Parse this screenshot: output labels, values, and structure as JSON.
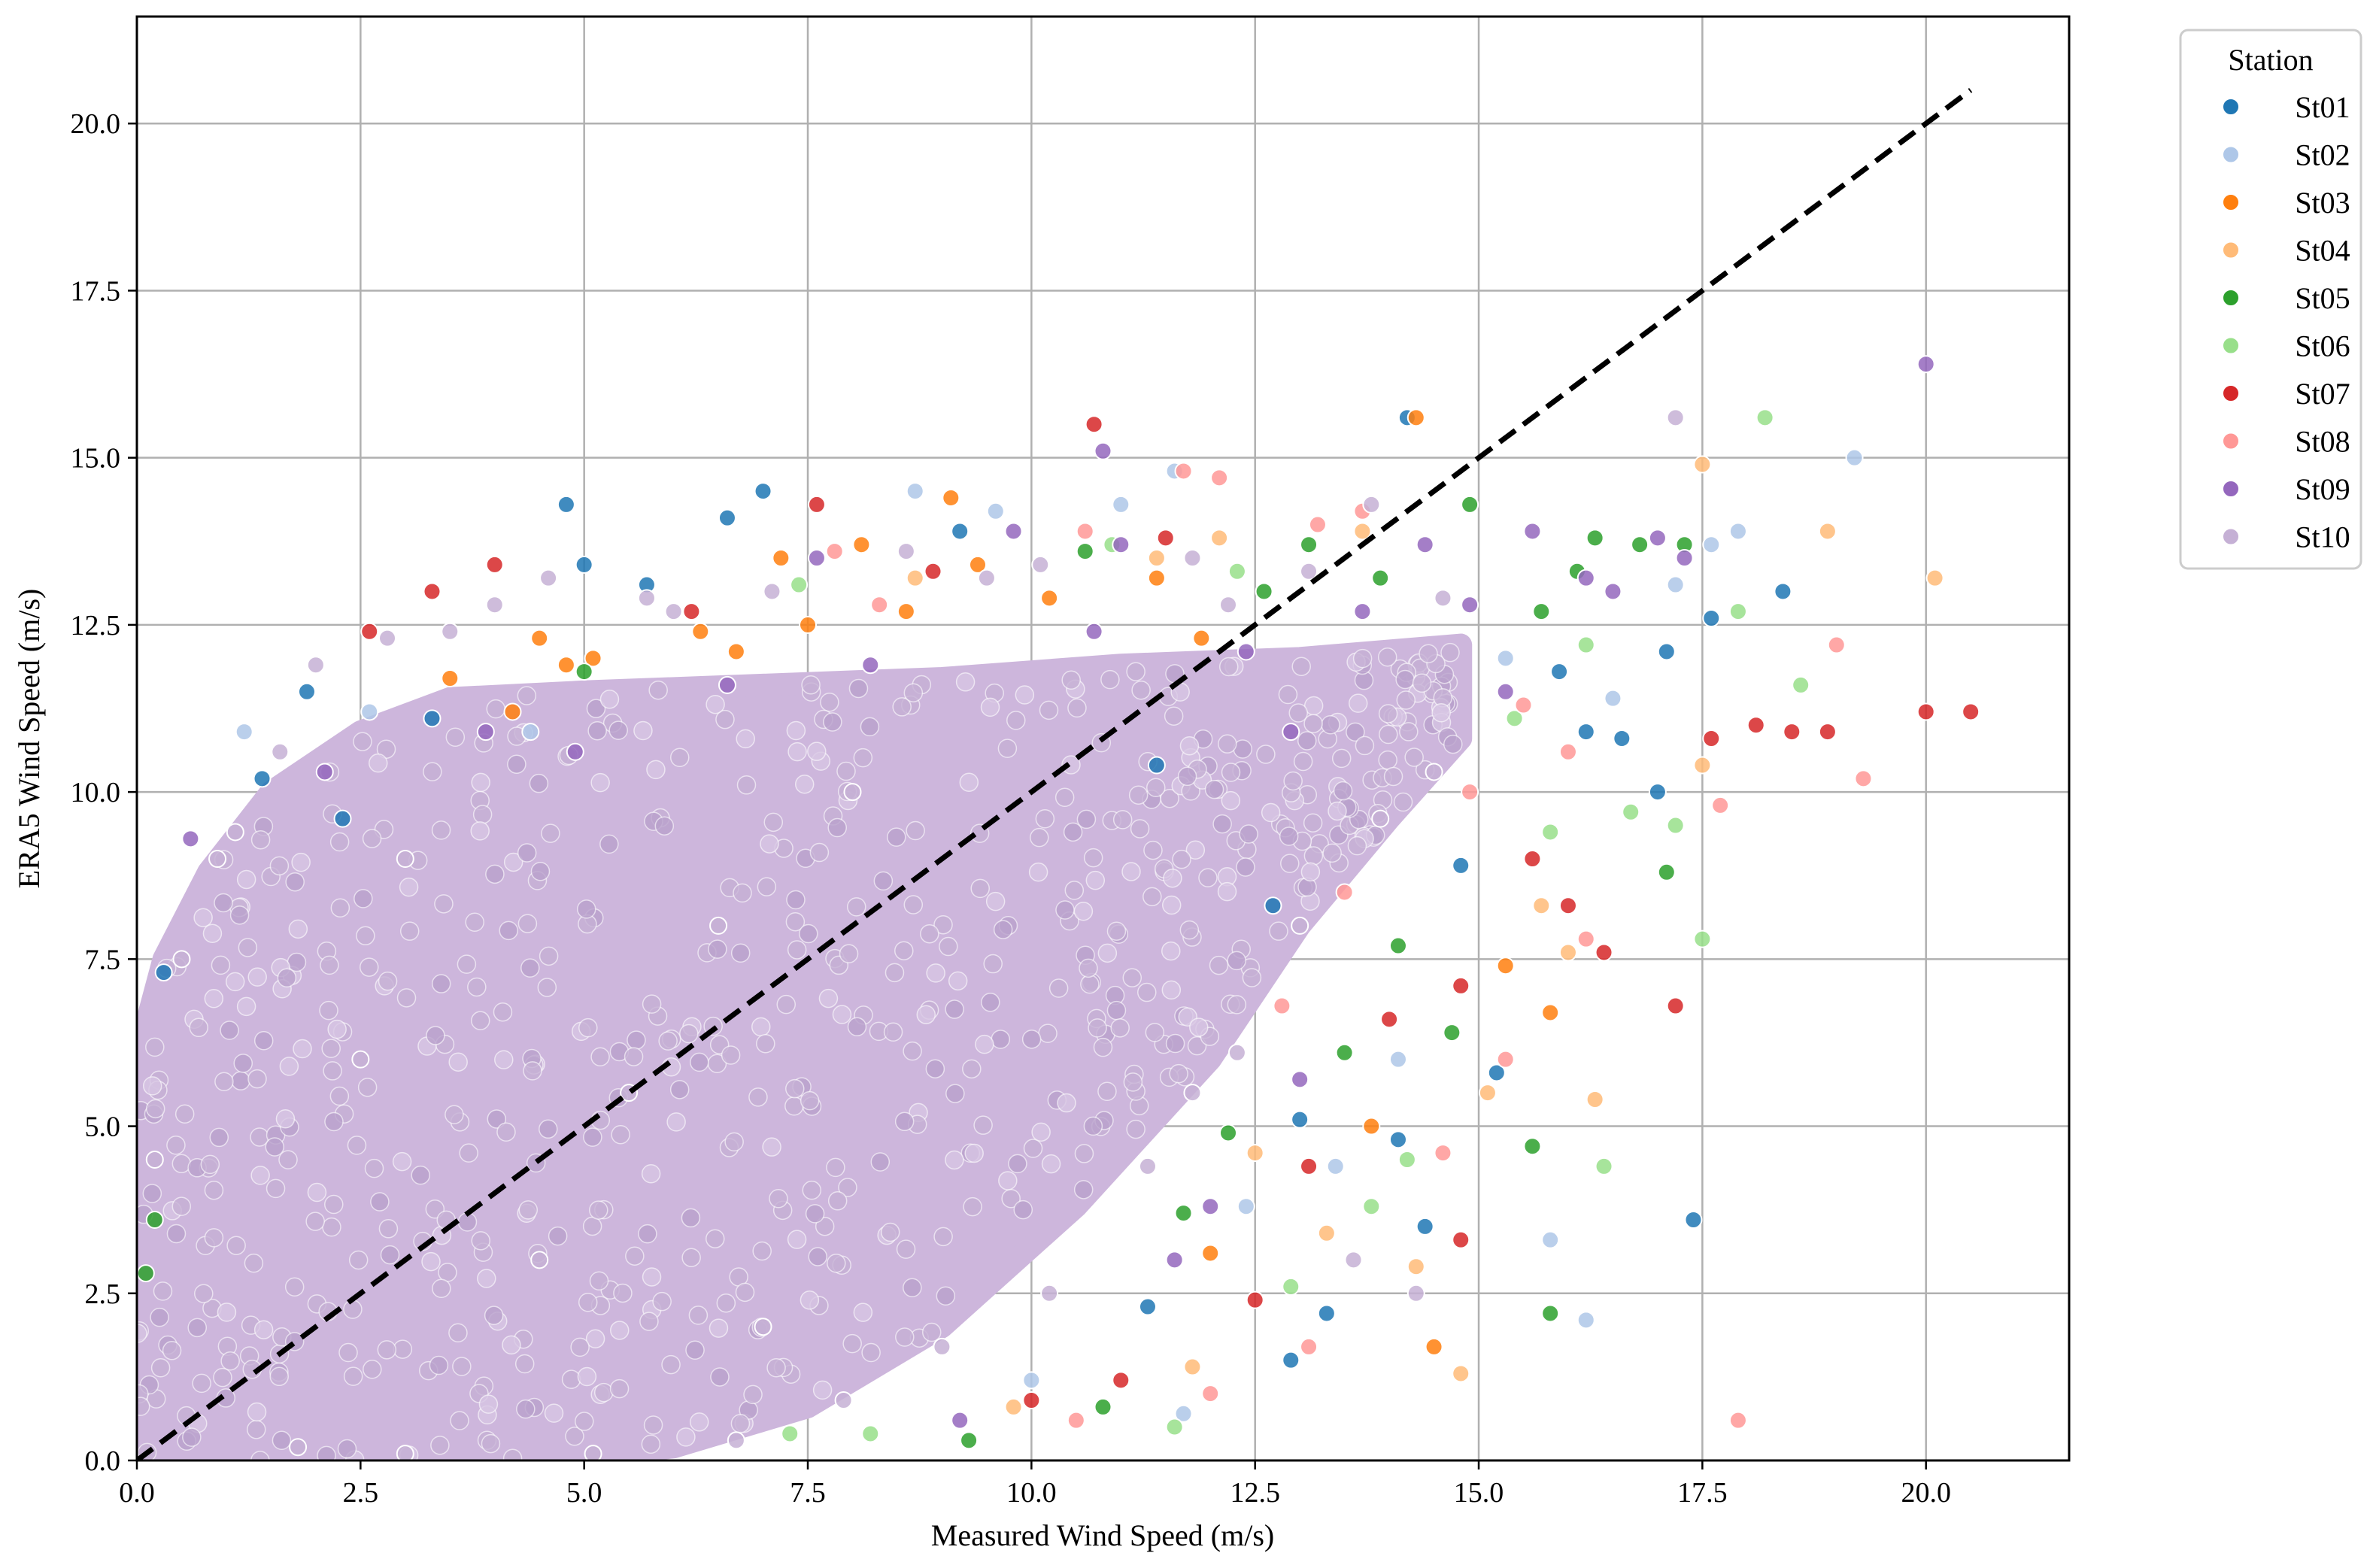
{
  "chart_data": {
    "type": "scatter",
    "title": "",
    "xlabel": "Measured Wind Speed (m/s)",
    "ylabel": "ERA5 Wind Speed (m/s)",
    "xlim": [
      0,
      21.6
    ],
    "ylim": [
      0,
      21.6
    ],
    "xticks": [
      "0.0",
      "2.5",
      "5.0",
      "7.5",
      "10.0",
      "12.5",
      "15.0",
      "17.5",
      "20.0"
    ],
    "yticks": [
      "0.0",
      "2.5",
      "5.0",
      "7.5",
      "10.0",
      "12.5",
      "15.0",
      "17.5",
      "20.0"
    ],
    "xtick_values": [
      0,
      2.5,
      5,
      7.5,
      10,
      12.5,
      15,
      17.5,
      20
    ],
    "ytick_values": [
      0,
      2.5,
      5,
      7.5,
      10,
      12.5,
      15,
      17.5,
      20
    ],
    "grid": true,
    "reference_line": {
      "style": "dashed",
      "color": "#000000",
      "from": [
        0,
        0
      ],
      "to": [
        20.5,
        20.5
      ]
    },
    "legend": {
      "title": "Station",
      "placement": "outside-top-right",
      "entries": [
        {
          "name": "St01",
          "color": "#1f77b4"
        },
        {
          "name": "St02",
          "color": "#aec7e8"
        },
        {
          "name": "St03",
          "color": "#ff7f0e"
        },
        {
          "name": "St04",
          "color": "#ffbb78"
        },
        {
          "name": "St05",
          "color": "#2ca02c"
        },
        {
          "name": "St06",
          "color": "#98df8a"
        },
        {
          "name": "St07",
          "color": "#d62728"
        },
        {
          "name": "St08",
          "color": "#ff9896"
        },
        {
          "name": "St09",
          "color": "#9467bd"
        },
        {
          "name": "St10",
          "color": "#c5b0d5"
        }
      ]
    },
    "series": [
      {
        "name": "St01",
        "color": "#1f77b4",
        "points": [
          [
            4.8,
            14.3
          ],
          [
            7.0,
            14.5
          ],
          [
            6.6,
            14.1
          ],
          [
            14.2,
            15.6
          ],
          [
            18.4,
            13.0
          ],
          [
            17.6,
            12.6
          ],
          [
            17.4,
            3.6
          ],
          [
            16.2,
            10.9
          ],
          [
            16.6,
            10.8
          ],
          [
            17.1,
            12.1
          ],
          [
            1.9,
            11.5
          ],
          [
            3.3,
            11.1
          ],
          [
            5.0,
            13.4
          ],
          [
            5.7,
            13.1
          ],
          [
            12.9,
            1.5
          ],
          [
            13.3,
            2.2
          ],
          [
            14.4,
            3.5
          ],
          [
            15.2,
            5.8
          ],
          [
            0.3,
            7.3
          ],
          [
            2.3,
            9.6
          ],
          [
            9.2,
            13.9
          ],
          [
            11.4,
            10.4
          ],
          [
            13.0,
            5.1
          ],
          [
            12.7,
            8.3
          ],
          [
            14.8,
            8.9
          ],
          [
            1.4,
            10.2
          ],
          [
            17.0,
            10.0
          ],
          [
            14.1,
            4.8
          ],
          [
            11.3,
            2.3
          ],
          [
            15.9,
            11.8
          ]
        ]
      },
      {
        "name": "St02",
        "color": "#aec7e8",
        "points": [
          [
            8.7,
            14.5
          ],
          [
            11.6,
            14.8
          ],
          [
            9.6,
            14.2
          ],
          [
            11.0,
            14.3
          ],
          [
            19.2,
            15.0
          ],
          [
            17.9,
            13.9
          ],
          [
            17.6,
            13.7
          ],
          [
            17.2,
            13.1
          ],
          [
            16.2,
            2.1
          ],
          [
            15.8,
            3.3
          ],
          [
            11.7,
            0.7
          ],
          [
            10.0,
            1.2
          ],
          [
            16.5,
            11.4
          ],
          [
            15.3,
            12.0
          ],
          [
            1.2,
            10.9
          ],
          [
            2.6,
            11.2
          ],
          [
            4.4,
            10.9
          ],
          [
            12.4,
            3.8
          ],
          [
            13.4,
            4.4
          ],
          [
            14.1,
            6.0
          ]
        ]
      },
      {
        "name": "St03",
        "color": "#ff7f0e",
        "points": [
          [
            14.3,
            15.6
          ],
          [
            9.1,
            14.4
          ],
          [
            7.2,
            13.5
          ],
          [
            15.8,
            6.7
          ],
          [
            14.5,
            1.7
          ],
          [
            4.5,
            12.3
          ],
          [
            4.8,
            11.9
          ],
          [
            6.3,
            12.4
          ],
          [
            8.1,
            13.7
          ],
          [
            9.4,
            13.4
          ],
          [
            10.2,
            12.9
          ],
          [
            11.4,
            13.2
          ],
          [
            3.5,
            11.7
          ],
          [
            4.2,
            11.2
          ],
          [
            6.7,
            12.1
          ],
          [
            7.5,
            12.5
          ],
          [
            8.6,
            12.7
          ],
          [
            11.9,
            12.3
          ],
          [
            5.1,
            12.0
          ],
          [
            12.0,
            3.1
          ],
          [
            13.8,
            5.0
          ],
          [
            15.3,
            7.4
          ]
        ]
      },
      {
        "name": "St04",
        "color": "#ffbb78",
        "points": [
          [
            17.5,
            14.9
          ],
          [
            20.1,
            13.2
          ],
          [
            18.9,
            13.9
          ],
          [
            16.3,
            5.4
          ],
          [
            14.8,
            1.3
          ],
          [
            15.1,
            5.5
          ],
          [
            16.0,
            7.6
          ],
          [
            12.1,
            13.8
          ],
          [
            13.7,
            13.9
          ],
          [
            11.4,
            13.5
          ],
          [
            8.7,
            13.2
          ],
          [
            9.8,
            0.8
          ],
          [
            11.8,
            1.4
          ],
          [
            13.3,
            3.4
          ],
          [
            14.3,
            2.9
          ],
          [
            15.7,
            8.3
          ],
          [
            17.5,
            10.4
          ],
          [
            12.5,
            4.6
          ]
        ]
      },
      {
        "name": "St05",
        "color": "#2ca02c",
        "points": [
          [
            14.9,
            14.3
          ],
          [
            16.8,
            13.7
          ],
          [
            16.3,
            13.8
          ],
          [
            17.3,
            13.7
          ],
          [
            17.1,
            8.8
          ],
          [
            15.6,
            4.7
          ],
          [
            15.8,
            2.2
          ],
          [
            9.3,
            0.3
          ],
          [
            10.8,
            0.8
          ],
          [
            12.6,
            13.0
          ],
          [
            13.1,
            13.7
          ],
          [
            13.9,
            13.2
          ],
          [
            15.7,
            12.7
          ],
          [
            16.1,
            13.3
          ],
          [
            0.1,
            2.8
          ],
          [
            0.2,
            3.6
          ],
          [
            14.1,
            7.7
          ],
          [
            13.5,
            6.1
          ],
          [
            12.2,
            4.9
          ],
          [
            11.7,
            3.7
          ],
          [
            14.7,
            6.4
          ],
          [
            5.0,
            11.8
          ],
          [
            10.6,
            13.6
          ]
        ]
      },
      {
        "name": "St06",
        "color": "#98df8a",
        "points": [
          [
            18.2,
            15.6
          ],
          [
            16.4,
            4.4
          ],
          [
            17.5,
            7.8
          ],
          [
            17.2,
            9.5
          ],
          [
            18.6,
            11.6
          ],
          [
            17.9,
            12.7
          ],
          [
            16.2,
            12.2
          ],
          [
            15.4,
            11.1
          ],
          [
            15.8,
            9.4
          ],
          [
            16.7,
            9.7
          ],
          [
            11.6,
            0.5
          ],
          [
            12.9,
            2.6
          ],
          [
            13.8,
            3.8
          ],
          [
            14.2,
            4.5
          ],
          [
            7.4,
            13.1
          ],
          [
            10.9,
            13.7
          ],
          [
            12.3,
            13.3
          ],
          [
            8.2,
            0.4
          ],
          [
            7.3,
            0.4
          ]
        ]
      },
      {
        "name": "St07",
        "color": "#d62728",
        "points": [
          [
            10.7,
            15.5
          ],
          [
            7.6,
            14.3
          ],
          [
            3.3,
            13.0
          ],
          [
            4.0,
            13.4
          ],
          [
            20.5,
            11.2
          ],
          [
            20.0,
            11.2
          ],
          [
            18.9,
            10.9
          ],
          [
            18.5,
            10.9
          ],
          [
            18.1,
            11.0
          ],
          [
            17.6,
            10.8
          ],
          [
            17.2,
            6.8
          ],
          [
            16.4,
            7.6
          ],
          [
            16.0,
            8.3
          ],
          [
            14.8,
            3.3
          ],
          [
            10.0,
            0.9
          ],
          [
            2.6,
            12.4
          ],
          [
            12.5,
            2.4
          ],
          [
            13.1,
            4.4
          ],
          [
            14.0,
            6.6
          ],
          [
            14.8,
            7.1
          ],
          [
            15.6,
            9.0
          ],
          [
            11.5,
            13.8
          ],
          [
            8.9,
            13.3
          ],
          [
            6.2,
            12.7
          ],
          [
            11.0,
            1.2
          ]
        ]
      },
      {
        "name": "St08",
        "color": "#ff9896",
        "points": [
          [
            12.1,
            14.7
          ],
          [
            11.7,
            14.8
          ],
          [
            13.2,
            14.0
          ],
          [
            13.7,
            14.2
          ],
          [
            19.0,
            12.2
          ],
          [
            19.3,
            10.2
          ],
          [
            17.9,
            0.6
          ],
          [
            16.2,
            7.8
          ],
          [
            15.3,
            6.0
          ],
          [
            14.6,
            4.6
          ],
          [
            13.1,
            1.7
          ],
          [
            12.0,
            1.0
          ],
          [
            10.5,
            0.6
          ],
          [
            17.7,
            9.8
          ],
          [
            15.5,
            11.3
          ],
          [
            16.0,
            10.6
          ],
          [
            7.8,
            13.6
          ],
          [
            10.6,
            13.9
          ],
          [
            8.3,
            12.8
          ],
          [
            14.9,
            10.0
          ],
          [
            13.5,
            8.5
          ],
          [
            12.8,
            6.8
          ]
        ]
      },
      {
        "name": "St09",
        "color": "#9467bd",
        "points": [
          [
            20.0,
            16.4
          ],
          [
            10.8,
            15.1
          ],
          [
            16.5,
            13.0
          ],
          [
            16.2,
            13.2
          ],
          [
            17.0,
            13.8
          ],
          [
            17.3,
            13.5
          ],
          [
            15.6,
            13.9
          ],
          [
            14.4,
            13.7
          ],
          [
            11.0,
            13.7
          ],
          [
            9.8,
            13.9
          ],
          [
            7.6,
            13.5
          ],
          [
            9.2,
            0.6
          ],
          [
            0.6,
            9.3
          ],
          [
            4.9,
            10.6
          ],
          [
            6.6,
            11.6
          ],
          [
            8.2,
            11.9
          ],
          [
            10.7,
            12.4
          ],
          [
            12.4,
            12.1
          ],
          [
            13.7,
            12.7
          ],
          [
            14.9,
            12.8
          ],
          [
            15.3,
            11.5
          ],
          [
            12.9,
            10.9
          ],
          [
            11.6,
            3.0
          ],
          [
            12.0,
            3.8
          ],
          [
            13.0,
            5.7
          ],
          [
            3.9,
            10.9
          ],
          [
            2.1,
            10.3
          ]
        ]
      },
      {
        "name": "St10",
        "color": "#c5b0d5",
        "points": [
          [
            17.2,
            15.6
          ],
          [
            13.8,
            14.3
          ],
          [
            14.3,
            2.5
          ],
          [
            13.6,
            3.0
          ],
          [
            0.2,
            4.5
          ],
          [
            0.9,
            9.0
          ],
          [
            1.6,
            10.6
          ],
          [
            2.0,
            11.9
          ],
          [
            2.8,
            12.3
          ],
          [
            3.5,
            12.4
          ],
          [
            4.0,
            12.8
          ],
          [
            4.6,
            13.2
          ],
          [
            5.7,
            12.9
          ],
          [
            7.1,
            13.0
          ],
          [
            8.6,
            13.6
          ],
          [
            10.1,
            13.4
          ],
          [
            11.8,
            13.5
          ],
          [
            13.1,
            13.3
          ],
          [
            0.5,
            7.5
          ],
          [
            1.1,
            9.4
          ],
          [
            6.0,
            12.7
          ],
          [
            9.5,
            13.2
          ],
          [
            12.2,
            12.8
          ],
          [
            14.6,
            12.9
          ],
          [
            1.8,
            0.2
          ],
          [
            3.0,
            0.1
          ],
          [
            5.1,
            0.1
          ],
          [
            6.7,
            0.3
          ],
          [
            7.9,
            0.9
          ],
          [
            10.2,
            2.5
          ],
          [
            11.3,
            4.4
          ],
          [
            12.3,
            6.1
          ],
          [
            13.0,
            8.0
          ],
          [
            13.9,
            9.6
          ],
          [
            14.5,
            10.3
          ],
          [
            9.0,
            1.7
          ],
          [
            11.8,
            5.5
          ],
          [
            2.5,
            6.0
          ],
          [
            4.5,
            3.0
          ],
          [
            6.5,
            8.0
          ],
          [
            8.0,
            10.0
          ],
          [
            3.0,
            9.0
          ],
          [
            5.5,
            5.5
          ],
          [
            7.0,
            2.0
          ]
        ]
      }
    ],
    "dense_cloud": {
      "description_series": "St10",
      "lower_envelope": [
        [
          0,
          0
        ],
        [
          1.0,
          0
        ],
        [
          3.0,
          0
        ],
        [
          5.0,
          0.05
        ],
        [
          6.0,
          0.2
        ],
        [
          7.5,
          0.8
        ],
        [
          9.0,
          2.0
        ],
        [
          10.5,
          3.8
        ],
        [
          12.0,
          6.0
        ],
        [
          13.0,
          8.0
        ],
        [
          14.0,
          9.6
        ],
        [
          14.8,
          10.8
        ]
      ],
      "upper_envelope": [
        [
          0,
          6.0
        ],
        [
          0.3,
          7.5
        ],
        [
          0.8,
          8.8
        ],
        [
          1.5,
          10.0
        ],
        [
          2.5,
          10.9
        ],
        [
          3.5,
          11.4
        ],
        [
          5.0,
          11.5
        ],
        [
          7.0,
          11.6
        ],
        [
          9.0,
          11.7
        ],
        [
          11.0,
          11.9
        ],
        [
          13.0,
          12.0
        ],
        [
          14.8,
          12.2
        ]
      ]
    }
  }
}
